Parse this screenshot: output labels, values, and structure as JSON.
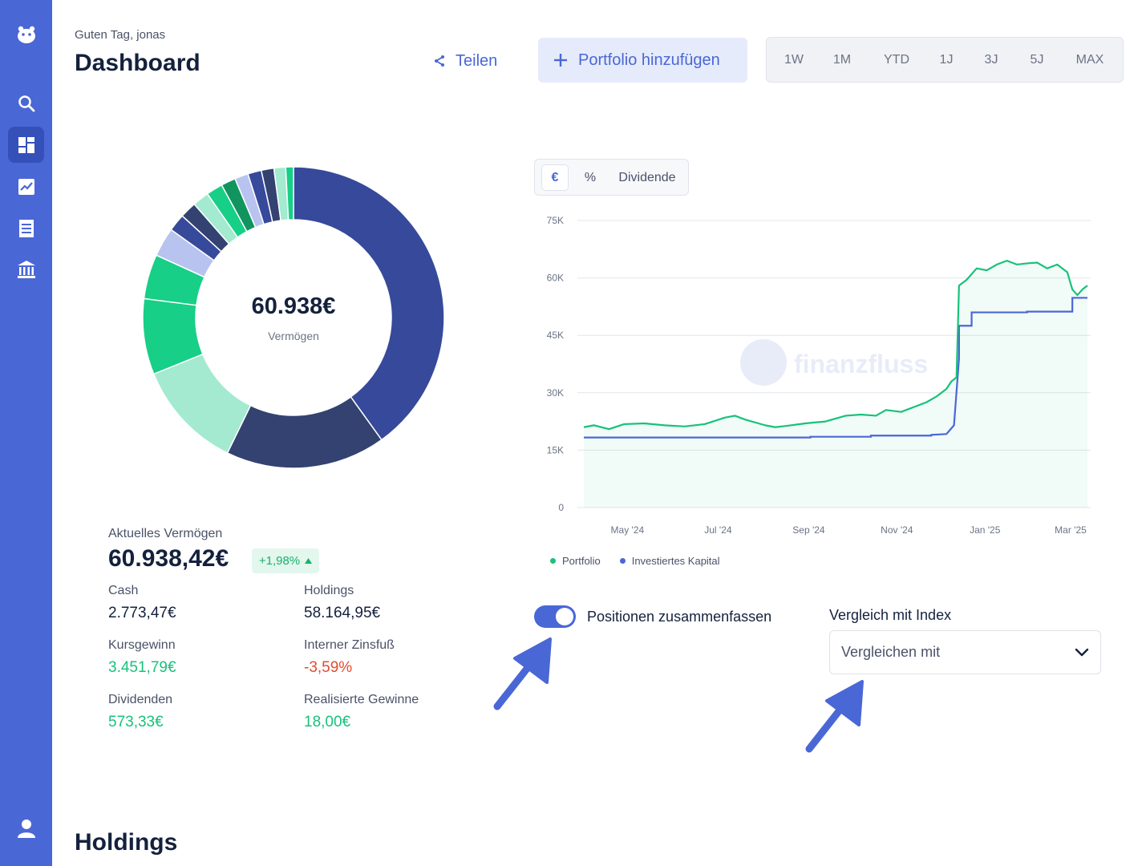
{
  "greeting": "Guten Tag, jonas",
  "page_title": "Dashboard",
  "share_label": "Teilen",
  "add_portfolio_label": "Portfolio hinzufügen",
  "time_ranges": [
    "1W",
    "1M",
    "YTD",
    "1J",
    "3J",
    "5J",
    "MAX"
  ],
  "active_time_range": "1J",
  "sidebar": {
    "items": [
      "logo-icon",
      "search-icon",
      "dashboard-icon",
      "chart-icon",
      "transactions-icon",
      "bank-icon",
      "user-icon"
    ],
    "active": "dashboard-icon"
  },
  "donut": {
    "center_value": "60.938€",
    "center_label": "Vermögen",
    "segments": [
      {
        "share": 0.385,
        "color": "#37499a"
      },
      {
        "share": 0.165,
        "color": "#334270"
      },
      {
        "share": 0.112,
        "color": "#a3ead0"
      },
      {
        "share": 0.078,
        "color": "#17cf87"
      },
      {
        "share": 0.046,
        "color": "#17cf87"
      },
      {
        "share": 0.03,
        "color": "#b8c4ef"
      },
      {
        "share": 0.018,
        "color": "#37499a"
      },
      {
        "share": 0.017,
        "color": "#334270"
      },
      {
        "share": 0.017,
        "color": "#a3ead0"
      },
      {
        "share": 0.017,
        "color": "#17cf87"
      },
      {
        "share": 0.015,
        "color": "#12945f"
      },
      {
        "share": 0.014,
        "color": "#b8c4ef"
      },
      {
        "share": 0.014,
        "color": "#37499a"
      },
      {
        "share": 0.013,
        "color": "#334270"
      },
      {
        "share": 0.012,
        "color": "#a3ead0"
      },
      {
        "share": 0.008,
        "color": "#17cf87"
      }
    ]
  },
  "stats": {
    "title": "Aktuelles Vermögen",
    "total": "60.938,42€",
    "change": "+1,98%",
    "cash_label": "Cash",
    "cash_value": "2.773,47€",
    "holdings_label": "Holdings",
    "holdings_value": "58.164,95€",
    "kursgewinn_label": "Kursgewinn",
    "kursgewinn_value": "3.451,79€",
    "zinsfuss_label": "Interner Zinsfuß",
    "zinsfuss_value": "-3,59%",
    "dividenden_label": "Dividenden",
    "dividenden_value": "573,33€",
    "realisiert_label": "Realisierte Gewinne",
    "realisiert_value": "18,00€"
  },
  "chart_modes": [
    "€",
    "%",
    "Dividende"
  ],
  "active_chart_mode": "€",
  "watermark": "finanzfluss",
  "chart_data": {
    "type": "line",
    "ylim": [
      0,
      75000
    ],
    "y_ticks": [
      "0",
      "15K",
      "30K",
      "45K",
      "60K",
      "75K"
    ],
    "y_tick_values": [
      0,
      15000,
      30000,
      45000,
      60000,
      75000
    ],
    "x_ticks": [
      "May '24",
      "Jul '24",
      "Sep '24",
      "Nov '24",
      "Jan '25",
      "Mar '25"
    ],
    "x_tick_positions": [
      0.12,
      0.3,
      0.48,
      0.655,
      0.83,
      1.0
    ],
    "grid": true,
    "colors": {
      "portfolio": "#17c27a",
      "kapital": "#4a67d6"
    },
    "series": [
      {
        "name": "Portfolio",
        "x": [
          0,
          0.02,
          0.05,
          0.08,
          0.12,
          0.16,
          0.2,
          0.24,
          0.28,
          0.3,
          0.32,
          0.36,
          0.38,
          0.4,
          0.44,
          0.48,
          0.52,
          0.55,
          0.58,
          0.6,
          0.63,
          0.66,
          0.68,
          0.7,
          0.72,
          0.73,
          0.74,
          0.745,
          0.76,
          0.78,
          0.8,
          0.82,
          0.84,
          0.86,
          0.88,
          0.9,
          0.92,
          0.94,
          0.96,
          0.97,
          0.98,
          0.99,
          1.0
        ],
        "y": [
          21000,
          21500,
          20500,
          21800,
          22000,
          21500,
          21200,
          21800,
          23500,
          24000,
          23000,
          21500,
          21000,
          21300,
          22000,
          22500,
          24000,
          24300,
          24000,
          25500,
          25000,
          26500,
          27500,
          29000,
          31000,
          33000,
          34000,
          58000,
          59500,
          62500,
          62000,
          63500,
          64500,
          63500,
          63800,
          64000,
          62500,
          63500,
          61500,
          57000,
          55500,
          57000,
          58000
        ]
      },
      {
        "name": "Investiertes Kapital",
        "x": [
          0,
          0.45,
          0.45,
          0.57,
          0.57,
          0.69,
          0.69,
          0.72,
          0.735,
          0.745,
          0.745,
          0.76,
          0.77,
          0.77,
          0.88,
          0.88,
          0.96,
          0.97,
          0.97,
          1.0
        ],
        "y": [
          18300,
          18300,
          18500,
          18500,
          18800,
          18800,
          19000,
          19200,
          21500,
          39000,
          47500,
          47500,
          47500,
          51000,
          51000,
          51200,
          51200,
          51200,
          54800,
          54800
        ]
      }
    ]
  },
  "merge_positions_label": "Positionen zusammenfassen",
  "merge_positions_on": true,
  "compare_label": "Vergleich mit Index",
  "compare_placeholder": "Vergleichen mit",
  "holdings_title": "Holdings"
}
